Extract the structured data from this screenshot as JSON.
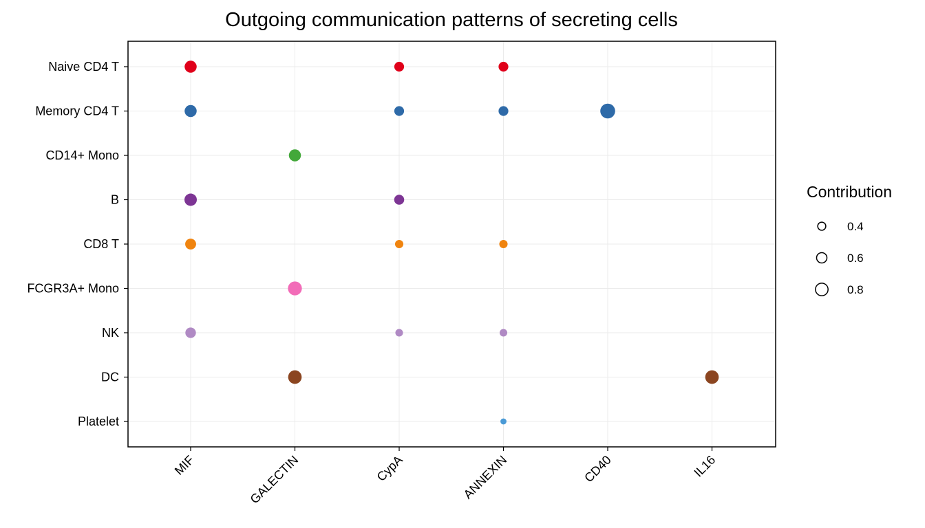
{
  "chart_data": {
    "type": "scatter",
    "title": "Outgoing communication patterns of secreting cells",
    "xlabel": "",
    "ylabel": "",
    "x_categories": [
      "MIF",
      "GALECTIN",
      "CypA",
      "ANNEXIN",
      "CD40",
      "IL16"
    ],
    "y_categories": [
      "Naive CD4 T",
      "Memory CD4 T",
      "CD14+ Mono",
      "B",
      "CD8 T",
      "FCGR3A+ Mono",
      "NK",
      "DC",
      "Platelet"
    ],
    "colors": {
      "Naive CD4 T": "#e0001a",
      "Memory CD4 T": "#2e6aa8",
      "CD14+ Mono": "#43a83a",
      "B": "#7d3594",
      "CD8 T": "#f0840f",
      "FCGR3A+ Mono": "#f26cb8",
      "NK": "#b08ac4",
      "DC": "#8b4520",
      "Platelet": "#4a9ad6"
    },
    "points": [
      {
        "x": "MIF",
        "y": "Naive CD4 T",
        "contribution": 0.75
      },
      {
        "x": "CypA",
        "y": "Naive CD4 T",
        "contribution": 0.55
      },
      {
        "x": "ANNEXIN",
        "y": "Naive CD4 T",
        "contribution": 0.55
      },
      {
        "x": "MIF",
        "y": "Memory CD4 T",
        "contribution": 0.75
      },
      {
        "x": "CypA",
        "y": "Memory CD4 T",
        "contribution": 0.55
      },
      {
        "x": "ANNEXIN",
        "y": "Memory CD4 T",
        "contribution": 0.55
      },
      {
        "x": "CD40",
        "y": "Memory CD4 T",
        "contribution": 1.0
      },
      {
        "x": "GALECTIN",
        "y": "CD14+ Mono",
        "contribution": 0.75
      },
      {
        "x": "MIF",
        "y": "B",
        "contribution": 0.78
      },
      {
        "x": "CypA",
        "y": "B",
        "contribution": 0.57
      },
      {
        "x": "MIF",
        "y": "CD8 T",
        "contribution": 0.65
      },
      {
        "x": "CypA",
        "y": "CD8 T",
        "contribution": 0.42
      },
      {
        "x": "ANNEXIN",
        "y": "CD8 T",
        "contribution": 0.42
      },
      {
        "x": "GALECTIN",
        "y": "FCGR3A+ Mono",
        "contribution": 0.92
      },
      {
        "x": "MIF",
        "y": "NK",
        "contribution": 0.62
      },
      {
        "x": "CypA",
        "y": "NK",
        "contribution": 0.36
      },
      {
        "x": "ANNEXIN",
        "y": "NK",
        "contribution": 0.36
      },
      {
        "x": "GALECTIN",
        "y": "DC",
        "contribution": 0.88
      },
      {
        "x": "IL16",
        "y": "DC",
        "contribution": 0.88
      },
      {
        "x": "ANNEXIN",
        "y": "Platelet",
        "contribution": 0.22
      }
    ],
    "legend": {
      "title": "Contribution",
      "position": "right",
      "entries": [
        {
          "label": "0.4",
          "value": 0.4
        },
        {
          "label": "0.6",
          "value": 0.6
        },
        {
          "label": "0.8",
          "value": 0.8
        }
      ]
    },
    "grid": true
  }
}
